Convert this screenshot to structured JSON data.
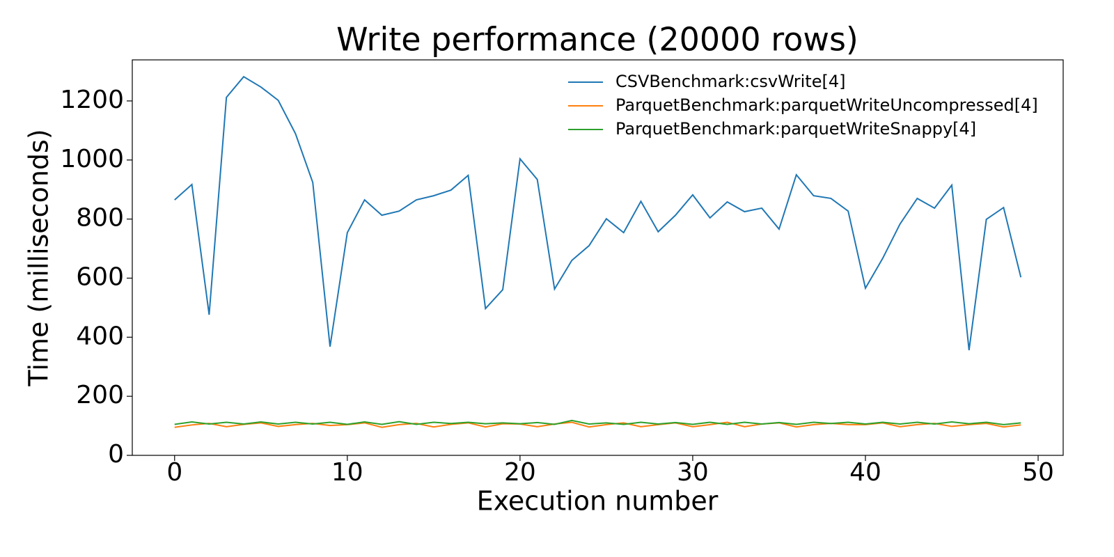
{
  "chart_data": {
    "type": "line",
    "title": "Write performance (20000 rows)",
    "x_label": "Execution number",
    "y_label": "Time (milliseconds)",
    "x": [
      0,
      1,
      2,
      3,
      4,
      5,
      6,
      7,
      8,
      9,
      10,
      11,
      12,
      13,
      14,
      15,
      16,
      17,
      18,
      19,
      20,
      21,
      22,
      23,
      24,
      25,
      26,
      27,
      28,
      29,
      30,
      31,
      32,
      33,
      34,
      35,
      36,
      37,
      38,
      39,
      40,
      41,
      42,
      43,
      44,
      45,
      46,
      47,
      48,
      49
    ],
    "series": [
      {
        "name": "CSVBenchmark:csvWrite[4]",
        "color": "#1f77b4",
        "values": [
          865,
          917,
          476,
          1212,
          1282,
          1247,
          1202,
          1089,
          924,
          368,
          754,
          865,
          813,
          827,
          865,
          879,
          898,
          948,
          497,
          561,
          1004,
          934,
          563,
          660,
          710,
          801,
          754,
          860,
          757,
          813,
          882,
          804,
          858,
          825,
          837,
          766,
          950,
          879,
          870,
          827,
          566,
          667,
          783,
          870,
          837,
          915,
          356,
          799,
          839,
          603
        ]
      },
      {
        "name": "ParquetBenchmark:parquetWriteUncompressed[4]",
        "color": "#ff7f0e",
        "values": [
          95,
          103,
          108,
          97,
          105,
          110,
          98,
          104,
          108,
          101,
          104,
          110,
          95,
          104,
          108,
          96,
          105,
          110,
          96,
          107,
          106,
          97,
          106,
          112,
          96,
          104,
          110,
          97,
          104,
          110,
          97,
          104,
          112,
          97,
          106,
          110,
          96,
          104,
          108,
          104,
          104,
          110,
          97,
          104,
          108,
          98,
          104,
          108,
          96,
          103
        ]
      },
      {
        "name": "ParquetBenchmark:parquetWriteSnappy[4]",
        "color": "#2ca02c",
        "values": [
          105,
          113,
          106,
          112,
          106,
          113,
          106,
          112,
          106,
          112,
          105,
          113,
          105,
          114,
          105,
          112,
          108,
          112,
          107,
          110,
          107,
          111,
          105,
          118,
          106,
          110,
          105,
          112,
          106,
          111,
          105,
          112,
          105,
          112,
          106,
          111,
          105,
          112,
          108,
          112,
          106,
          112,
          106,
          112,
          106,
          113,
          107,
          112,
          104,
          110
        ]
      }
    ],
    "xlim": [
      -2.45,
      51.45
    ],
    "xticks": [
      0,
      10,
      20,
      30,
      40,
      50
    ],
    "ylim": [
      0,
      1339
    ],
    "yticks": [
      0,
      200,
      400,
      600,
      800,
      1000,
      1200
    ],
    "legend": "upper right",
    "grid": false
  }
}
